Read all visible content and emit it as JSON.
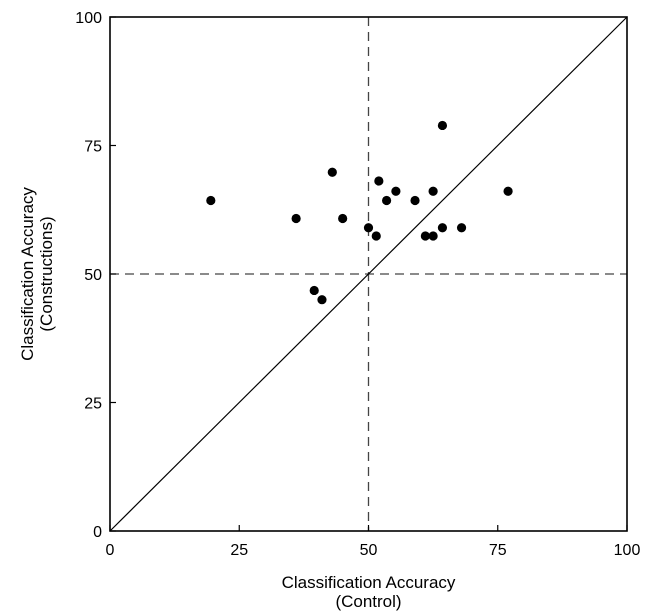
{
  "chart_data": {
    "type": "scatter",
    "xlabel": [
      "Classification Accuracy",
      "(Control)"
    ],
    "ylabel": [
      "Classification Accuracy",
      "(Constructions)"
    ],
    "xlim": [
      0,
      100
    ],
    "ylim": [
      0,
      100
    ],
    "xticks": [
      "0",
      "25",
      "50",
      "75",
      "100"
    ],
    "yticks": [
      "0",
      "25",
      "50",
      "75",
      "100"
    ],
    "reference_lines": {
      "vertical_dashed_at_x": 50,
      "horizontal_dashed_at_y": 50,
      "diagonal": "y = x"
    },
    "grid": false,
    "points": [
      {
        "x": 19.5,
        "y": 64.3
      },
      {
        "x": 36,
        "y": 60.8
      },
      {
        "x": 39.5,
        "y": 46.8
      },
      {
        "x": 41,
        "y": 45
      },
      {
        "x": 43,
        "y": 69.8
      },
      {
        "x": 45,
        "y": 60.8
      },
      {
        "x": 50,
        "y": 59
      },
      {
        "x": 51.5,
        "y": 57.4
      },
      {
        "x": 52,
        "y": 68.1
      },
      {
        "x": 53.5,
        "y": 64.3
      },
      {
        "x": 55.3,
        "y": 66.1
      },
      {
        "x": 59,
        "y": 64.3
      },
      {
        "x": 61,
        "y": 57.4
      },
      {
        "x": 62.5,
        "y": 57.4
      },
      {
        "x": 62.5,
        "y": 66.1
      },
      {
        "x": 64.3,
        "y": 59
      },
      {
        "x": 64.3,
        "y": 78.9
      },
      {
        "x": 68,
        "y": 59
      },
      {
        "x": 77,
        "y": 66.1
      }
    ]
  }
}
